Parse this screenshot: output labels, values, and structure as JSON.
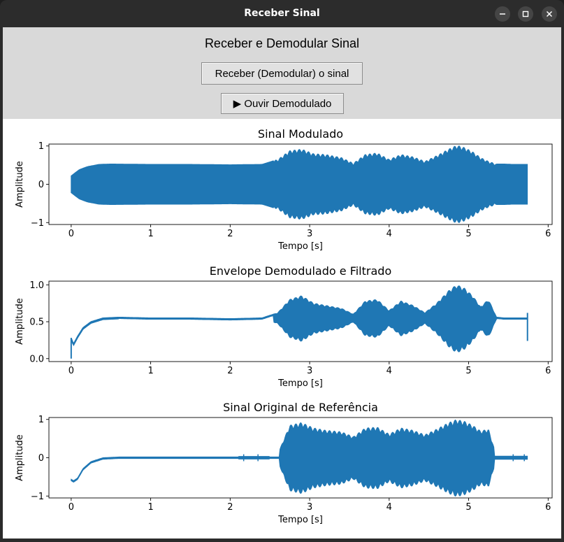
{
  "window": {
    "title": "Receber Sinal"
  },
  "header": {
    "heading": "Receber e Demodular Sinal",
    "demodulate_label": "Receber (Demodular) o sinal",
    "listen_label": "▶ Ouvir Demodulado"
  },
  "colors": {
    "series": "#1f77b4",
    "panel": "#d9d9d9",
    "titlebar": "#2c2c2c"
  },
  "chart_data": [
    {
      "type": "line",
      "title": "Sinal Modulado",
      "xlabel": "Tempo [s]",
      "ylabel": "Amplitude",
      "xlim": [
        -0.28,
        6.05
      ],
      "ylim": [
        -1.05,
        1.05
      ],
      "xticks": [
        0,
        1,
        2,
        3,
        4,
        5,
        6
      ],
      "yticks": [
        -1,
        0,
        1
      ],
      "ytick_labels": [
        "−1",
        "0",
        "1"
      ],
      "style": "modulated",
      "series": [
        {
          "x": [
            0,
            0.05,
            0.1,
            0.2,
            0.35,
            0.5,
            1.0,
            1.5,
            2.0,
            2.4,
            2.6,
            2.75,
            2.9,
            3.05,
            3.2,
            3.4,
            3.55,
            3.7,
            3.85,
            4.0,
            4.15,
            4.3,
            4.45,
            4.6,
            4.75,
            4.85,
            4.95,
            5.05,
            5.15,
            5.25,
            5.35,
            5.45,
            5.55,
            5.74
          ],
          "y": [
            0.22,
            0.3,
            0.38,
            0.46,
            0.52,
            0.53,
            0.52,
            0.52,
            0.51,
            0.52,
            0.65,
            0.88,
            0.92,
            0.8,
            0.78,
            0.7,
            0.55,
            0.78,
            0.82,
            0.65,
            0.78,
            0.72,
            0.6,
            0.75,
            0.92,
            1.02,
            0.96,
            0.85,
            0.7,
            0.6,
            0.53,
            0.53,
            0.52,
            0.52
          ]
        }
      ]
    },
    {
      "type": "line",
      "title": "Envelope Demodulado e Filtrado",
      "xlabel": "Tempo [s]",
      "ylabel": "Amplitude",
      "xlim": [
        -0.28,
        6.05
      ],
      "ylim": [
        -0.04,
        1.05
      ],
      "xticks": [
        0,
        1,
        2,
        3,
        4,
        5,
        6
      ],
      "yticks": [
        0.0,
        0.5,
        1.0
      ],
      "ytick_labels": [
        "0.0",
        "0.5",
        "1.0"
      ],
      "style": "envelope",
      "series": [
        {
          "x": [
            0,
            0.03,
            0.08,
            0.15,
            0.25,
            0.4,
            0.6,
            1.0,
            1.5,
            2.0,
            2.4,
            2.6,
            2.75,
            2.9,
            3.05,
            3.2,
            3.4,
            3.55,
            3.7,
            3.85,
            4.0,
            4.15,
            4.3,
            4.45,
            4.6,
            4.75,
            4.85,
            4.95,
            5.05,
            5.15,
            5.25,
            5.35,
            5.45,
            5.55,
            5.74
          ],
          "y": [
            0.28,
            0.2,
            0.3,
            0.42,
            0.5,
            0.55,
            0.56,
            0.55,
            0.55,
            0.54,
            0.55,
            0.62,
            0.8,
            0.85,
            0.75,
            0.72,
            0.68,
            0.6,
            0.78,
            0.8,
            0.65,
            0.78,
            0.72,
            0.62,
            0.75,
            0.92,
            1.0,
            0.95,
            0.85,
            0.7,
            0.8,
            0.56,
            0.55,
            0.55,
            0.55
          ]
        }
      ]
    },
    {
      "type": "line",
      "title": "Sinal Original de Referência",
      "xlabel": "Tempo [s]",
      "ylabel": "Amplitude",
      "xlim": [
        -0.28,
        6.05
      ],
      "ylim": [
        -1.05,
        1.05
      ],
      "xticks": [
        0,
        1,
        2,
        3,
        4,
        5,
        6
      ],
      "yticks": [
        -1,
        0,
        1
      ],
      "ytick_labels": [
        "−1",
        "0",
        "1"
      ],
      "style": "original",
      "series": [
        {
          "x": [
            0,
            0.03,
            0.08,
            0.15,
            0.25,
            0.4,
            0.6,
            1.0,
            1.5,
            2.0,
            2.4,
            2.6,
            2.75,
            2.9,
            3.05,
            3.2,
            3.4,
            3.55,
            3.7,
            3.85,
            4.0,
            4.15,
            4.3,
            4.45,
            4.6,
            4.75,
            4.85,
            4.95,
            5.05,
            5.15,
            5.25,
            5.35,
            5.45,
            5.55,
            5.74
          ],
          "y": [
            -0.58,
            -0.62,
            -0.55,
            -0.3,
            -0.12,
            -0.02,
            0.0,
            0.0,
            0.0,
            0.0,
            0.02,
            0.1,
            0.85,
            0.92,
            0.78,
            0.72,
            0.68,
            0.55,
            0.78,
            0.8,
            0.62,
            0.78,
            0.72,
            0.6,
            0.75,
            0.92,
            1.0,
            0.95,
            0.85,
            0.7,
            0.75,
            0.05,
            0.03,
            0.03,
            0.03
          ]
        }
      ]
    }
  ]
}
